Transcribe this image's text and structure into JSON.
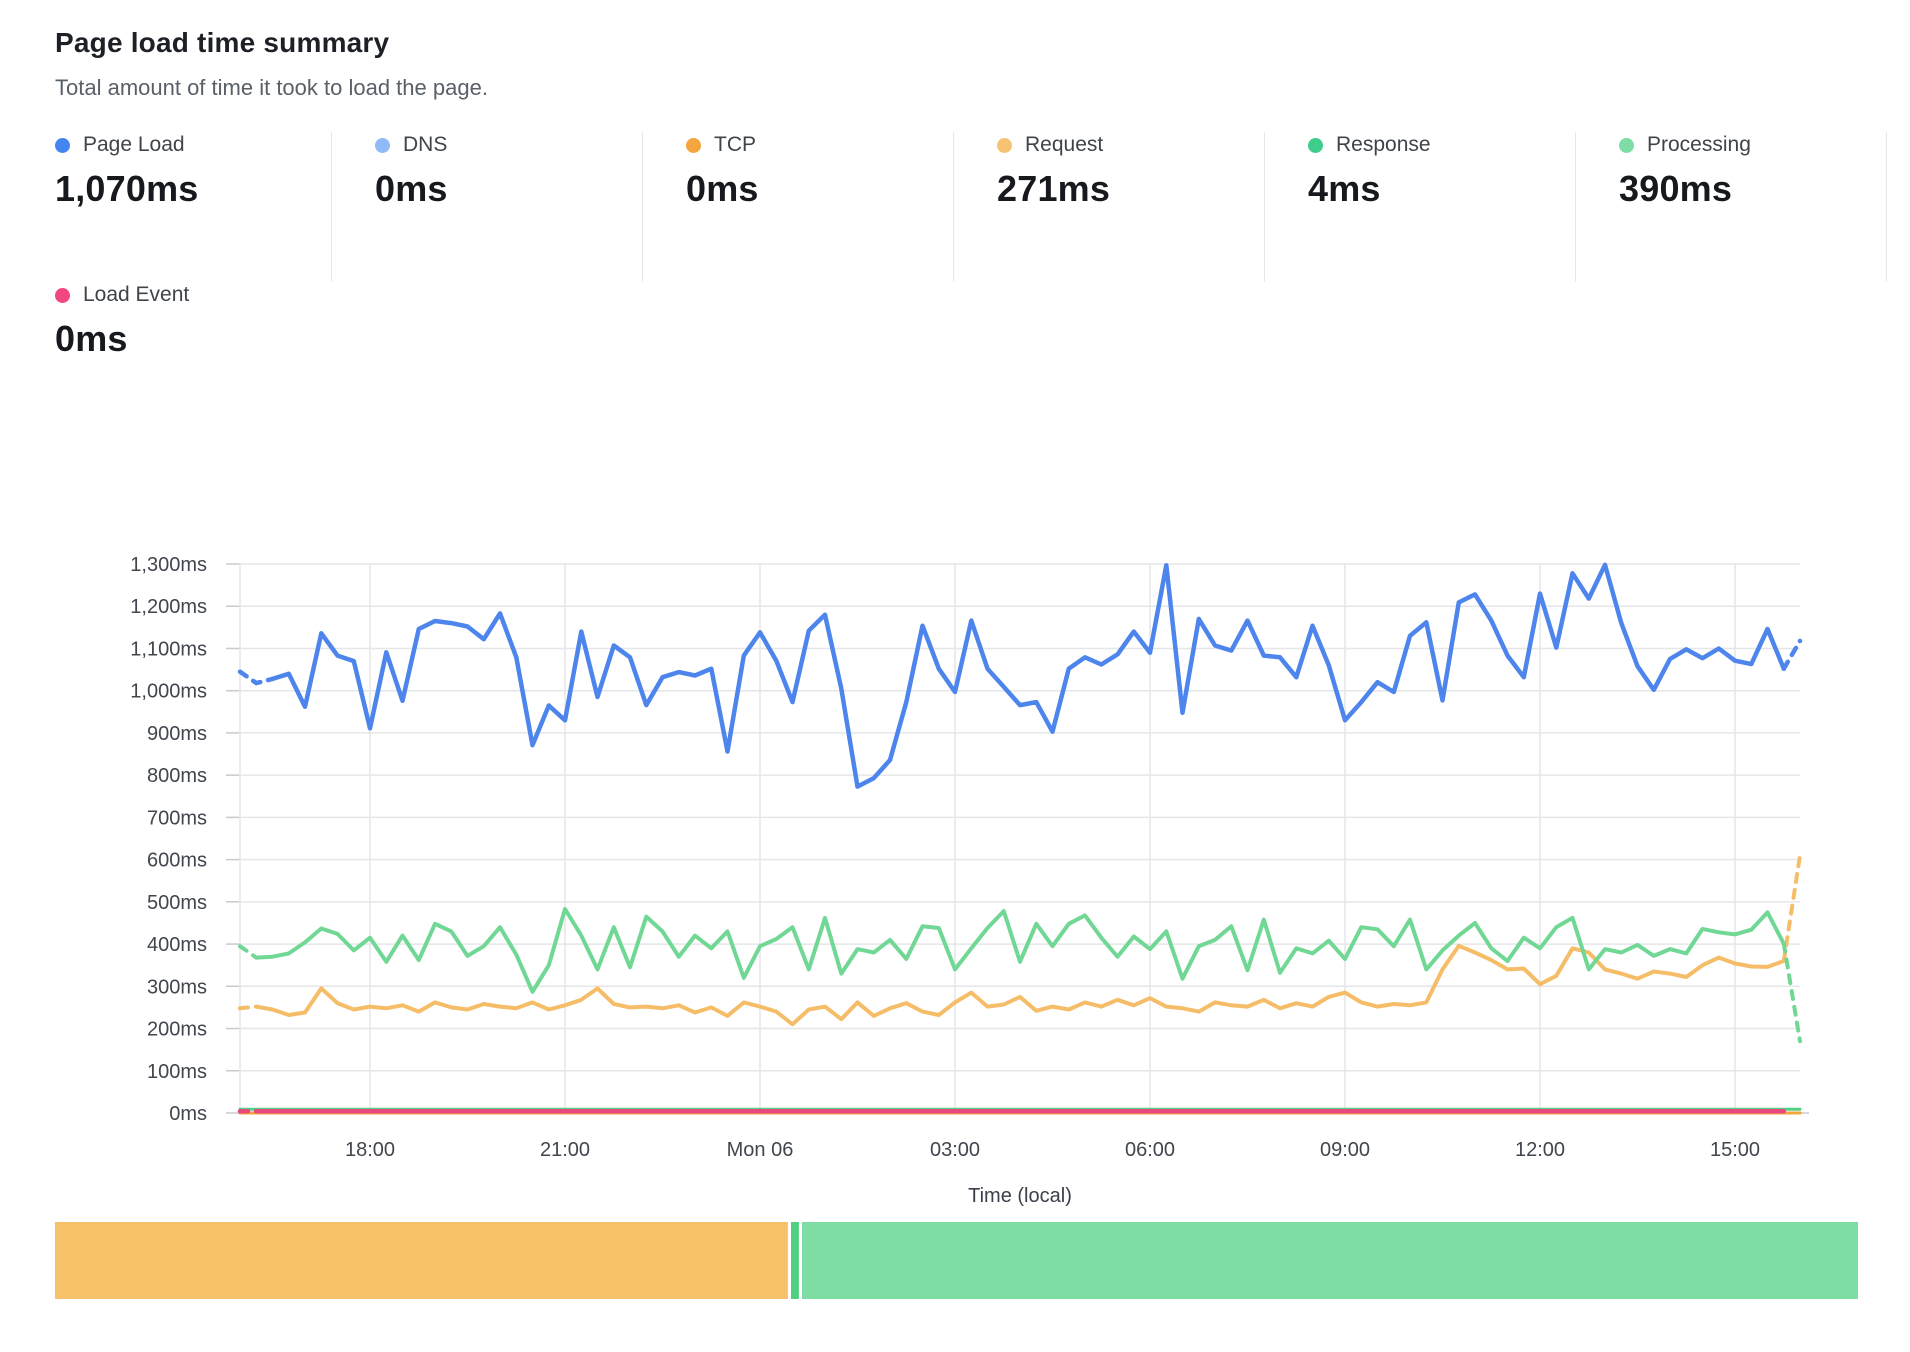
{
  "header": {
    "title": "Page load time summary",
    "subtitle": "Total amount of time it took to load the page."
  },
  "metrics": [
    {
      "id": "page-load",
      "label": "Page Load",
      "value": "1,070ms",
      "color": "#4486f0"
    },
    {
      "id": "dns",
      "label": "DNS",
      "value": "0ms",
      "color": "#91bbf8"
    },
    {
      "id": "tcp",
      "label": "TCP",
      "value": "0ms",
      "color": "#f4a53d"
    },
    {
      "id": "request",
      "label": "Request",
      "value": "271ms",
      "color": "#f7c372"
    },
    {
      "id": "response",
      "label": "Response",
      "value": "4ms",
      "color": "#3ecd8a"
    },
    {
      "id": "processing",
      "label": "Processing",
      "value": "390ms",
      "color": "#7edda4"
    }
  ],
  "metrics_row2": [
    {
      "id": "load-event",
      "label": "Load Event",
      "value": "0ms",
      "color": "#f2467f"
    }
  ],
  "chart_data": {
    "type": "line",
    "title": "Page load time summary",
    "x_axis": {
      "label": "Time (local)",
      "tick_labels": [
        "18:00",
        "21:00",
        "Mon 06",
        "03:00",
        "06:00",
        "09:00",
        "12:00",
        "15:00"
      ],
      "tick_point_indices": [
        8,
        20,
        32,
        44,
        56,
        68,
        80,
        92
      ],
      "points_per_series": 97,
      "interval": "15min",
      "span": "24h (16:00 Sun - 16:00 Mon)"
    },
    "y_axis": {
      "min": 0,
      "max": 1300,
      "step": 100,
      "unit": "ms"
    },
    "grid": true,
    "legend_position": "top-metrics-row",
    "series": [
      {
        "name": "DNS",
        "color": "#91bbf8",
        "width": 3,
        "constant": 0
      },
      {
        "name": "TCP",
        "color": "#f4a53d",
        "width": 3,
        "constant": 0
      },
      {
        "name": "Response",
        "color": "#52d185",
        "width": 3,
        "constant": 9
      },
      {
        "name": "Load Event",
        "color": "#e8487e",
        "width": 4.5,
        "constant": 4,
        "dash_start_segments": 1,
        "end_index": 95
      },
      {
        "name": "Request",
        "color": "#f6bd68",
        "width": 4,
        "dash_start_segments": 1,
        "dash_end_segments": 1,
        "values": [
          248,
          252,
          245,
          232,
          238,
          295,
          260,
          245,
          252,
          248,
          255,
          240,
          262,
          250,
          245,
          258,
          252,
          248,
          262,
          245,
          255,
          268,
          295,
          258,
          250,
          252,
          248,
          255,
          238,
          250,
          230,
          262,
          252,
          240,
          210,
          245,
          252,
          222,
          262,
          230,
          248,
          260,
          240,
          232,
          262,
          285,
          252,
          257,
          275,
          242,
          252,
          245,
          262,
          252,
          268,
          255,
          272,
          252,
          248,
          240,
          262,
          255,
          252,
          268,
          248,
          260,
          252,
          275,
          285,
          262,
          252,
          258,
          255,
          262,
          340,
          396,
          380,
          362,
          340,
          342,
          305,
          325,
          390,
          380,
          340,
          330,
          318,
          335,
          330,
          322,
          350,
          368,
          354,
          347,
          346,
          360,
          610
        ]
      },
      {
        "name": "Processing",
        "color": "#71d795",
        "width": 4,
        "dash_start_segments": 1,
        "dash_end_segments": 1,
        "values": [
          395,
          368,
          370,
          378,
          404,
          437,
          424,
          385,
          415,
          358,
          420,
          362,
          448,
          430,
          372,
          395,
          440,
          375,
          287,
          350,
          483,
          420,
          340,
          440,
          345,
          465,
          430,
          370,
          420,
          390,
          430,
          320,
          395,
          412,
          440,
          340,
          462,
          330,
          388,
          380,
          410,
          365,
          442,
          438,
          340,
          390,
          438,
          478,
          358,
          448,
          395,
          448,
          468,
          415,
          370,
          418,
          388,
          430,
          318,
          395,
          410,
          442,
          338,
          458,
          332,
          390,
          378,
          408,
          365,
          440,
          435,
          395,
          458,
          340,
          385,
          420,
          450,
          390,
          360,
          415,
          390,
          440,
          462,
          340,
          388,
          380,
          398,
          372,
          388,
          378,
          436,
          428,
          423,
          434,
          475,
          401,
          170
        ]
      },
      {
        "name": "Page Load",
        "color": "#4d85ec",
        "width": 4.5,
        "dash_start_segments": 2,
        "dash_end_segments": 1,
        "values": [
          1045,
          1018,
          1028,
          1040,
          962,
          1136,
          1083,
          1070,
          911,
          1091,
          976,
          1146,
          1165,
          1160,
          1152,
          1122,
          1183,
          1079,
          871,
          965,
          930,
          1140,
          985,
          1107,
          1079,
          966,
          1032,
          1044,
          1036,
          1052,
          856,
          1083,
          1138,
          1071,
          973,
          1142,
          1180,
          1005,
          773,
          793,
          836,
          973,
          1154,
          1052,
          997,
          1166,
          1052,
          1009,
          966,
          973,
          903,
          1052,
          1079,
          1062,
          1086,
          1140,
          1090,
          1297,
          948,
          1170,
          1107,
          1095,
          1166,
          1083,
          1079,
          1032,
          1154,
          1060,
          930,
          973,
          1020,
          997,
          1130,
          1162,
          977,
          1209,
          1228,
          1166,
          1083,
          1032,
          1230,
          1102,
          1278,
          1218,
          1298,
          1160,
          1058,
          1002,
          1075,
          1098,
          1077,
          1100,
          1071,
          1063,
          1146,
          1052,
          1118
        ]
      }
    ]
  },
  "timeline_bar": {
    "segments": [
      {
        "id": "segment-1",
        "color": "#f7c169",
        "from": 0.0,
        "to": 0.4065
      },
      {
        "id": "segment-2",
        "color": "#51d084",
        "from": 0.4082,
        "to": 0.4126
      },
      {
        "id": "segment-3",
        "color": "#7edda3",
        "from": 0.4143,
        "to": 1.0
      }
    ]
  },
  "colors": {
    "gridline": "#e5e6e8",
    "tick": "#c9cacd",
    "axis_text": "#41464e"
  }
}
